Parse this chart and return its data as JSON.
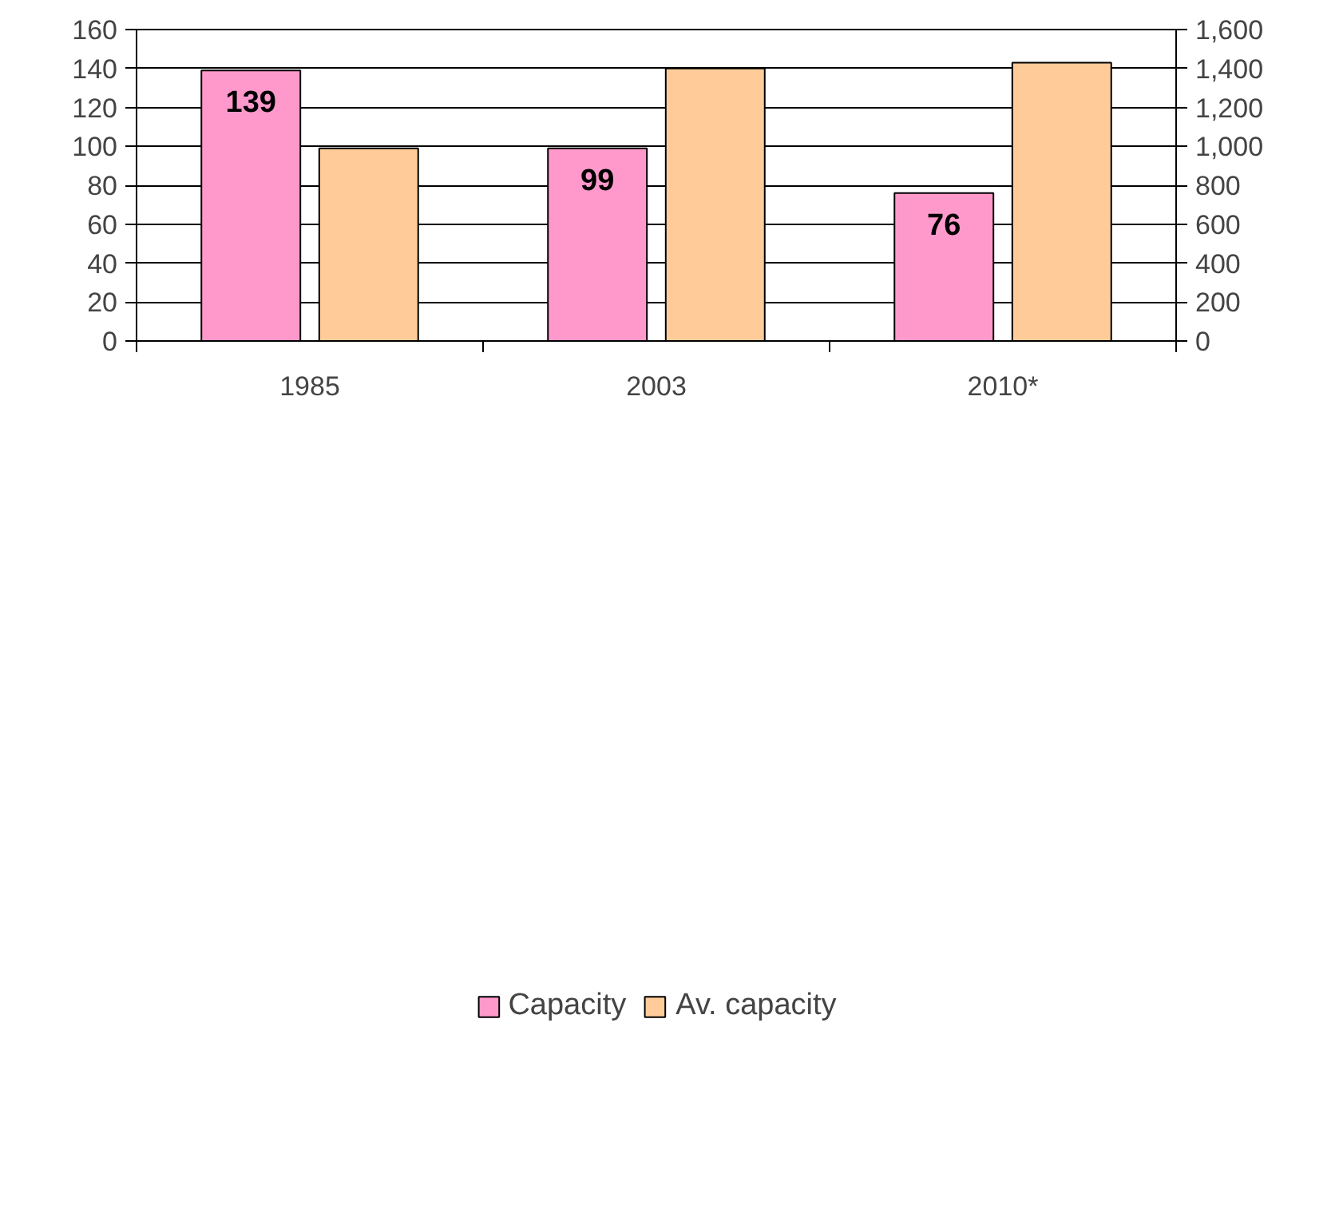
{
  "chart_data": {
    "type": "bar",
    "categories": [
      "1985",
      "2003",
      "2010*"
    ],
    "series": [
      {
        "name": "Capacity",
        "color": "#ff99cc",
        "values": [
          139,
          99,
          76
        ],
        "value_labels": [
          "139",
          "99",
          "76"
        ]
      },
      {
        "name": "Av. capacity",
        "color": "#ffcc99",
        "values": [
          990,
          1400,
          1430
        ],
        "axis": "y2"
      }
    ],
    "ylim": [
      0,
      160
    ],
    "yticks": [
      0,
      20,
      40,
      60,
      80,
      100,
      120,
      140,
      160
    ],
    "y2lim": [
      0,
      1600
    ],
    "y2ticks": [
      0,
      200,
      400,
      600,
      800,
      {
        "value": 1000,
        "label": "1,000"
      },
      {
        "value": 1200,
        "label": "1,200"
      },
      {
        "value": 1400,
        "label": "1,400"
      },
      {
        "value": 1600,
        "label": "1,600"
      }
    ],
    "grid": "y",
    "legend": "bottom"
  }
}
